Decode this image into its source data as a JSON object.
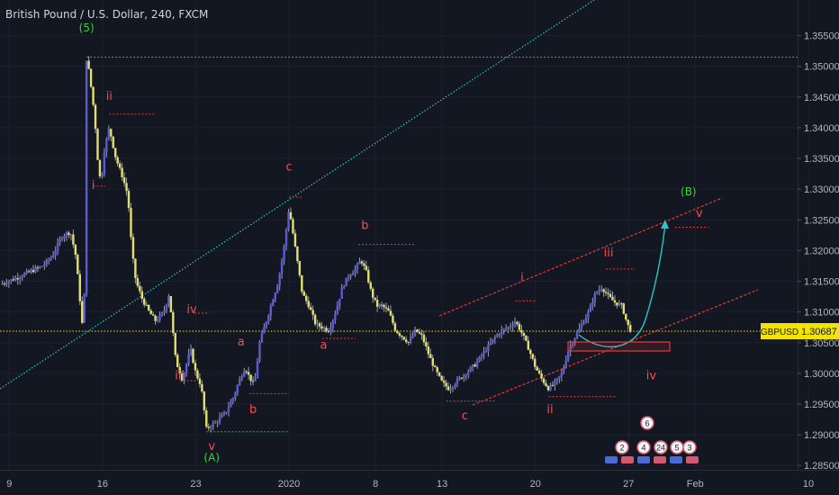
{
  "header": {
    "title": "British Pound / U.S. Dollar, 240, FXCM"
  },
  "price_tag": {
    "symbol": "GBPUSD",
    "value": "1.30687"
  },
  "colors": {
    "background": "#131722",
    "bull_body": "#5b5bd6",
    "bear_body": "#e5e06c",
    "wick": "#9aa0b0",
    "red_levels": "#e53935",
    "green_levels": "#2eb82e",
    "cyan_line": "#2ac6c6",
    "price_line": "#f2e300"
  },
  "chart_data": {
    "type": "candlestick",
    "title": "British Pound / U.S. Dollar, 240, FXCM",
    "y_range": [
      1.2843,
      1.3608
    ],
    "y_ticks": [
      "1.35500",
      "1.35000",
      "1.34500",
      "1.34000",
      "1.33500",
      "1.33000",
      "1.32500",
      "1.32000",
      "1.31500",
      "1.31000",
      "1.30500",
      "1.30000",
      "1.29500",
      "1.29000",
      "1.28500"
    ],
    "x_ticks": [
      {
        "label": "9",
        "t": 0.0
      },
      {
        "label": "16",
        "t": 7.0
      },
      {
        "label": "23",
        "t": 14.0
      },
      {
        "label": "2020",
        "t": 21.0
      },
      {
        "label": "8",
        "t": 27.5
      },
      {
        "label": "13",
        "t": 32.5
      },
      {
        "label": "20",
        "t": 39.5
      },
      {
        "label": "27",
        "t": 46.5
      },
      {
        "label": "Feb",
        "t": 51.5
      },
      {
        "label": "10",
        "t": 60.0
      }
    ],
    "x_range": [
      -0.7,
      62.3
    ],
    "last_price": 1.30687,
    "price_path": [
      [
        -0.7,
        1.3145
      ],
      [
        0.5,
        1.3155
      ],
      [
        1.5,
        1.3165
      ],
      [
        2.5,
        1.3175
      ],
      [
        3.2,
        1.319
      ],
      [
        4.0,
        1.3225
      ],
      [
        4.6,
        1.323
      ],
      [
        5.0,
        1.319
      ],
      [
        5.3,
        1.312
      ],
      [
        5.6,
        1.305
      ],
      [
        5.8,
        1.3512
      ],
      [
        6.0,
        1.349
      ],
      [
        6.4,
        1.342
      ],
      [
        6.7,
        1.333
      ],
      [
        6.9,
        1.331
      ],
      [
        7.1,
        1.336
      ],
      [
        7.5,
        1.34
      ],
      [
        8.0,
        1.335
      ],
      [
        8.5,
        1.332
      ],
      [
        8.9,
        1.329
      ],
      [
        9.2,
        1.32
      ],
      [
        9.5,
        1.315
      ],
      [
        10.0,
        1.312
      ],
      [
        10.5,
        1.31
      ],
      [
        11.0,
        1.3085
      ],
      [
        11.6,
        1.31
      ],
      [
        12.0,
        1.313
      ],
      [
        12.5,
        1.302
      ],
      [
        13.0,
        1.299
      ],
      [
        13.6,
        1.304
      ],
      [
        14.0,
        1.3
      ],
      [
        14.4,
        1.298
      ],
      [
        14.8,
        1.291
      ],
      [
        15.5,
        1.292
      ],
      [
        16.2,
        1.2935
      ],
      [
        16.8,
        1.296
      ],
      [
        17.3,
        1.299
      ],
      [
        17.7,
        1.301
      ],
      [
        18.0,
        1.2995
      ],
      [
        18.4,
        1.298
      ],
      [
        18.8,
        1.305
      ],
      [
        19.5,
        1.31
      ],
      [
        20.2,
        1.315
      ],
      [
        20.6,
        1.32
      ],
      [
        21.0,
        1.327
      ],
      [
        21.5,
        1.32
      ],
      [
        22.0,
        1.313
      ],
      [
        22.5,
        1.311
      ],
      [
        23.0,
        1.308
      ],
      [
        23.5,
        1.3075
      ],
      [
        24.0,
        1.307
      ],
      [
        24.5,
        1.31
      ],
      [
        25.0,
        1.314
      ],
      [
        25.5,
        1.316
      ],
      [
        26.0,
        1.317
      ],
      [
        26.4,
        1.3185
      ],
      [
        26.8,
        1.3165
      ],
      [
        27.2,
        1.313
      ],
      [
        27.6,
        1.311
      ],
      [
        28.0,
        1.311
      ],
      [
        28.5,
        1.31
      ],
      [
        29.0,
        1.307
      ],
      [
        29.5,
        1.306
      ],
      [
        30.0,
        1.305
      ],
      [
        30.5,
        1.307
      ],
      [
        31.0,
        1.306
      ],
      [
        31.5,
        1.303
      ],
      [
        32.0,
        1.3005
      ],
      [
        32.5,
        1.2985
      ],
      [
        33.0,
        1.2975
      ],
      [
        33.5,
        1.2985
      ],
      [
        34.0,
        1.2995
      ],
      [
        34.5,
        1.3005
      ],
      [
        35.0,
        1.3015
      ],
      [
        35.5,
        1.303
      ],
      [
        36.0,
        1.3045
      ],
      [
        36.5,
        1.306
      ],
      [
        37.0,
        1.307
      ],
      [
        37.5,
        1.3075
      ],
      [
        38.0,
        1.3085
      ],
      [
        38.5,
        1.3065
      ],
      [
        39.0,
        1.304
      ],
      [
        39.5,
        1.301
      ],
      [
        40.0,
        1.299
      ],
      [
        40.5,
        1.2975
      ],
      [
        41.0,
        1.2985
      ],
      [
        41.5,
        1.3
      ],
      [
        42.0,
        1.304
      ],
      [
        42.5,
        1.306
      ],
      [
        43.0,
        1.308
      ],
      [
        43.5,
        1.31
      ],
      [
        44.0,
        1.313
      ],
      [
        44.5,
        1.314
      ],
      [
        45.0,
        1.3125
      ],
      [
        45.5,
        1.3115
      ],
      [
        46.0,
        1.311
      ],
      [
        46.4,
        1.308
      ],
      [
        46.7,
        1.3068
      ]
    ],
    "wave_labels": [
      {
        "text": "(5)",
        "t": 5.8,
        "y": 1.3557,
        "color": "green"
      },
      {
        "text": "ii",
        "t": 7.5,
        "y": 1.3445,
        "color": "red"
      },
      {
        "text": "i",
        "t": 6.3,
        "y": 1.33,
        "color": "red"
      },
      {
        "text": "iii",
        "t": 12.8,
        "y": 1.299,
        "color": "red"
      },
      {
        "text": "iv",
        "t": 13.7,
        "y": 1.3098,
        "color": "red"
      },
      {
        "text": "a",
        "t": 17.4,
        "y": 1.3045,
        "color": "red"
      },
      {
        "text": "b",
        "t": 18.3,
        "y": 1.2935,
        "color": "red"
      },
      {
        "text": "v",
        "t": 15.2,
        "y": 1.2875,
        "color": "red"
      },
      {
        "text": "(A)",
        "t": 15.2,
        "y": 1.2857,
        "color": "green"
      },
      {
        "text": "c",
        "t": 21.0,
        "y": 1.333,
        "color": "red"
      },
      {
        "text": "b",
        "t": 26.7,
        "y": 1.3235,
        "color": "red"
      },
      {
        "text": "a",
        "t": 23.6,
        "y": 1.304,
        "color": "red"
      },
      {
        "text": "c",
        "t": 34.2,
        "y": 1.2925,
        "color": "red"
      },
      {
        "text": "i",
        "t": 38.5,
        "y": 1.315,
        "color": "red"
      },
      {
        "text": "ii",
        "t": 40.6,
        "y": 1.2935,
        "color": "red"
      },
      {
        "text": "iii",
        "t": 45.0,
        "y": 1.319,
        "color": "red"
      },
      {
        "text": "iv",
        "t": 48.2,
        "y": 1.299,
        "color": "red"
      },
      {
        "text": "v",
        "t": 51.8,
        "y": 1.3255,
        "color": "red"
      },
      {
        "text": "(B)",
        "t": 51.0,
        "y": 1.329,
        "color": "green"
      }
    ],
    "event_markers": [
      "6",
      "2",
      "4",
      "24",
      "5",
      "3"
    ]
  }
}
